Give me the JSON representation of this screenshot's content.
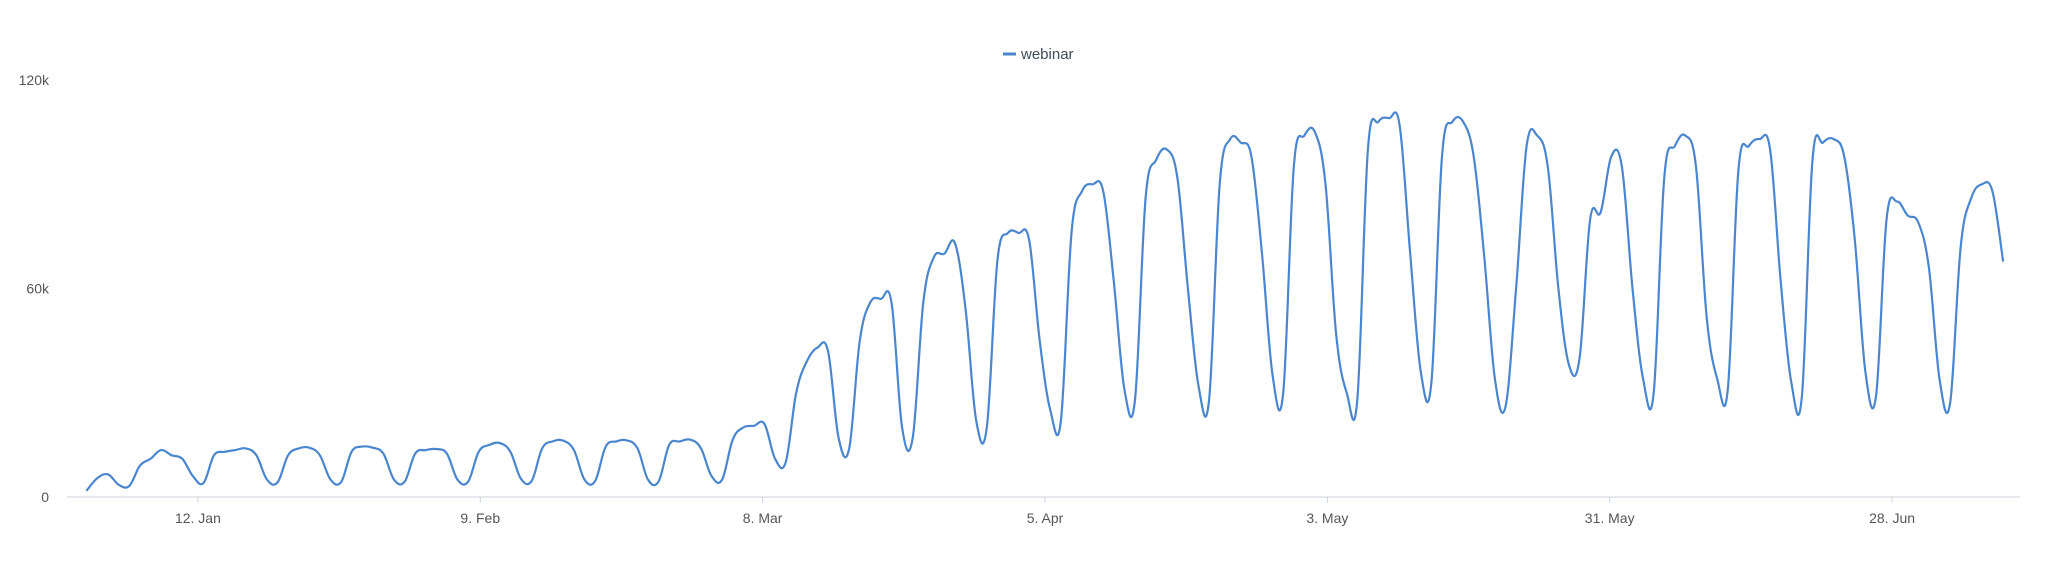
{
  "chart_data": {
    "type": "line",
    "title": "",
    "xlabel": "",
    "ylabel": "",
    "legend": {
      "position": "top-center"
    },
    "grid": false,
    "x_start": "2020-01-01",
    "x_end": "2020-07-09",
    "ylim": [
      0,
      120000
    ],
    "y_ticks": [
      {
        "value": 0,
        "label": "0"
      },
      {
        "value": 60000,
        "label": "60k"
      },
      {
        "value": 120000,
        "label": "120k"
      }
    ],
    "x_ticks": [
      {
        "date": "2020-01-12",
        "label": "12. Jan"
      },
      {
        "date": "2020-02-09",
        "label": "9. Feb"
      },
      {
        "date": "2020-03-08",
        "label": "8. Mar"
      },
      {
        "date": "2020-04-05",
        "label": "5. Apr"
      },
      {
        "date": "2020-05-03",
        "label": "3. May"
      },
      {
        "date": "2020-05-31",
        "label": "31. May"
      },
      {
        "date": "2020-06-28",
        "label": "28. Jun"
      }
    ],
    "series": [
      {
        "name": "webinar",
        "color": "#4a86d0",
        "values": [
          2000,
          5500,
          6500,
          3500,
          3200,
          9000,
          11000,
          13500,
          12000,
          11000,
          6000,
          4000,
          12000,
          13000,
          13500,
          14000,
          12000,
          5000,
          4200,
          12000,
          14000,
          14200,
          12000,
          5000,
          4300,
          13000,
          14500,
          14200,
          12500,
          5000,
          4400,
          12500,
          13500,
          13800,
          12500,
          5000,
          4400,
          13000,
          15000,
          15500,
          13000,
          5200,
          4600,
          14000,
          16000,
          16200,
          13500,
          5000,
          4600,
          14500,
          16000,
          16300,
          14000,
          5000,
          4500,
          15000,
          16000,
          16500,
          14000,
          6000,
          5000,
          16500,
          20000,
          20500,
          21000,
          11000,
          10000,
          30000,
          39000,
          43000,
          42000,
          17000,
          14000,
          45000,
          56000,
          57000,
          56000,
          20000,
          17000,
          56000,
          69000,
          70000,
          73000,
          54000,
          22000,
          20000,
          68000,
          76000,
          76000,
          74000,
          45000,
          25000,
          22000,
          76000,
          88000,
          90000,
          88000,
          62000,
          31000,
          28000,
          86000,
          97000,
          100000,
          92000,
          60000,
          32000,
          28000,
          90000,
          103000,
          102000,
          98000,
          70000,
          35000,
          30000,
          95000,
          104000,
          105000,
          90000,
          47000,
          30000,
          28000,
          100000,
          108000,
          109000,
          107000,
          70000,
          36000,
          33000,
          98000,
          108000,
          108000,
          98000,
          69000,
          34000,
          26000,
          60000,
          101000,
          104000,
          95000,
          60000,
          38000,
          40000,
          80000,
          82000,
          98000,
          95000,
          60000,
          34000,
          30000,
          92000,
          101000,
          104000,
          95000,
          52000,
          34000,
          31000,
          94000,
          101000,
          103000,
          100000,
          62000,
          33000,
          29000,
          97000,
          102000,
          103000,
          98000,
          74000,
          36000,
          29000,
          80000,
          85000,
          81000,
          79000,
          66000,
          34000,
          27000,
          72000,
          86000,
          90000,
          88000,
          68000
        ]
      }
    ]
  }
}
